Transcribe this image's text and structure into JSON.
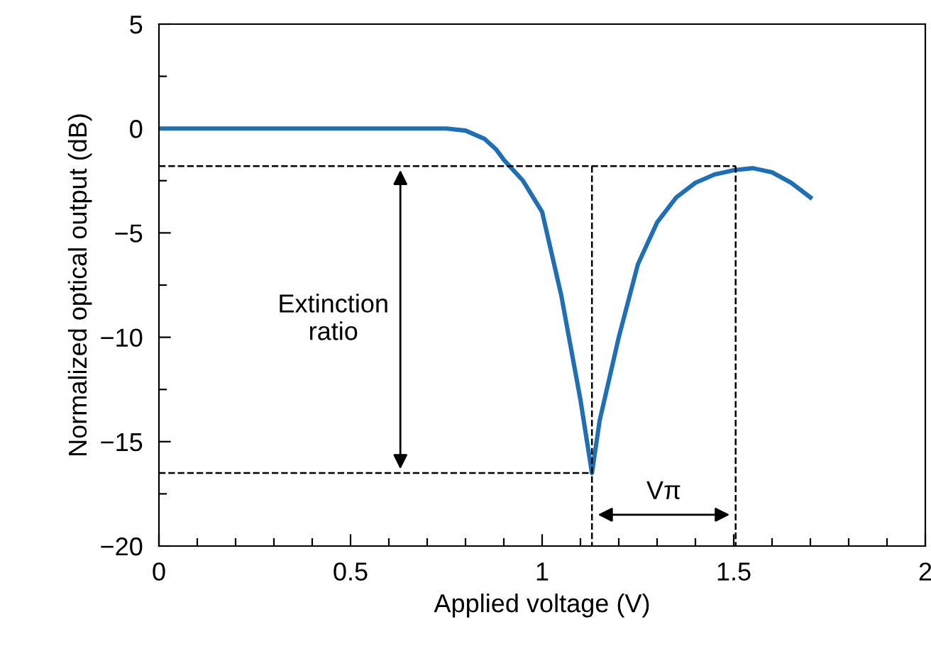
{
  "chart_data": {
    "type": "line",
    "xlabel": "Applied voltage (V)",
    "ylabel": "Normalized optical output (dB)",
    "xlim": [
      0,
      2
    ],
    "ylim": [
      -20,
      5
    ],
    "xticks": [
      0,
      {
        "value": 0.1,
        "label": null
      },
      {
        "value": 0.2,
        "label": null
      },
      {
        "value": 0.3,
        "label": null
      },
      {
        "value": 0.4,
        "label": null
      },
      0.5,
      {
        "value": 0.6,
        "label": null
      },
      {
        "value": 0.7,
        "label": null
      },
      {
        "value": 0.8,
        "label": null
      },
      {
        "value": 0.9,
        "label": null
      },
      1,
      {
        "value": 1.1,
        "label": null
      },
      {
        "value": 1.2,
        "label": null
      },
      {
        "value": 1.3,
        "label": null
      },
      {
        "value": 1.4,
        "label": null
      },
      1.5,
      {
        "value": 1.6,
        "label": null
      },
      {
        "value": 1.7,
        "label": null
      },
      {
        "value": 1.8,
        "label": null
      },
      {
        "value": 1.9,
        "label": null
      },
      2
    ],
    "yticks": [
      {
        "value": -20,
        "label": "−20"
      },
      {
        "value": -17.5,
        "label": null
      },
      {
        "value": -15,
        "label": "−15"
      },
      {
        "value": -12.5,
        "label": null
      },
      {
        "value": -10,
        "label": "−10"
      },
      {
        "value": -7.5,
        "label": null
      },
      {
        "value": -5,
        "label": "−5"
      },
      {
        "value": -2.5,
        "label": null
      },
      0,
      {
        "value": 2.5,
        "label": null
      },
      5
    ],
    "grid": false,
    "legend": false,
    "series": [
      {
        "color": "#1f6fb5",
        "line_style": "solid",
        "x": [
          0,
          0.3,
          0.6,
          0.75,
          0.8,
          0.85,
          0.88,
          0.9,
          0.95,
          1.0,
          1.05,
          1.1,
          1.13,
          1.15,
          1.2,
          1.25,
          1.3,
          1.35,
          1.4,
          1.45,
          1.5,
          1.55,
          1.6,
          1.65,
          1.7
        ],
        "values": [
          0,
          0,
          0,
          0,
          -0.1,
          -0.5,
          -1.0,
          -1.5,
          -2.5,
          -4,
          -8,
          -13,
          -16.5,
          -14,
          -10,
          -6.5,
          -4.5,
          -3.3,
          -2.6,
          -2.2,
          -2,
          -1.9,
          -2.1,
          -2.6,
          -3.3
        ]
      },
      {
        "color": "#000000",
        "line_style": "dashed",
        "x": [
          0,
          1.505
        ],
        "values": [
          -1.8,
          -1.8
        ]
      },
      {
        "color": "#000000",
        "line_style": "dashed",
        "x": [
          0,
          1.13
        ],
        "values": [
          -16.5,
          -16.5
        ]
      },
      {
        "color": "#000000",
        "line_style": "dashed",
        "x": [
          1.13,
          1.13
        ],
        "values": [
          -1.8,
          -20
        ]
      },
      {
        "color": "#000000",
        "line_style": "dashed",
        "x": [
          1.505,
          1.505
        ],
        "values": [
          -1.8,
          -20
        ]
      }
    ],
    "annotations": [
      "Extinction\nratio",
      "Vπ"
    ]
  }
}
